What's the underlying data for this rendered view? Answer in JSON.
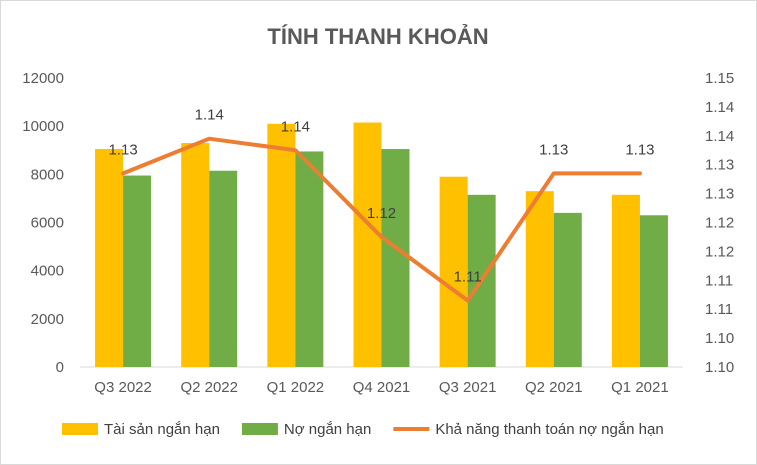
{
  "chart_data": {
    "type": "bar",
    "title": "TÍNH THANH KHOẢN",
    "categories": [
      "Q3 2022",
      "Q2 2022",
      "Q1 2022",
      "Q4 2021",
      "Q3 2021",
      "Q2 2021",
      "Q1 2021"
    ],
    "series": [
      {
        "name": "Tài sản ngắn hạn",
        "type": "bar",
        "axis": "left",
        "color": "#FFC000",
        "values": [
          9050,
          9300,
          10100,
          10150,
          7900,
          7300,
          7150
        ]
      },
      {
        "name": "Nợ ngắn hạn",
        "type": "bar",
        "axis": "left",
        "color": "#70AD47",
        "values": [
          7950,
          8150,
          8950,
          9050,
          7150,
          6400,
          6300
        ]
      },
      {
        "name": "Khả năng thanh toán nợ ngắn hạn",
        "type": "line",
        "axis": "right",
        "color": "#ED7D31",
        "values": [
          1.1335,
          1.1395,
          1.1375,
          1.1225,
          1.1115,
          1.1335,
          1.1335
        ],
        "labels": [
          "1.13",
          "1.14",
          "1.14",
          "1.12",
          "1.11",
          "1.13",
          "1.13"
        ]
      }
    ],
    "y_left": {
      "ylim": [
        0,
        12000
      ],
      "ticks": [
        "0",
        "2000",
        "4000",
        "6000",
        "8000",
        "10000",
        "12000"
      ]
    },
    "y_right": {
      "ylim": [
        1.1,
        1.15
      ],
      "ticks": [
        "1.10",
        "1.10",
        "1.11",
        "1.11",
        "1.12",
        "1.12",
        "1.13",
        "1.13",
        "1.14",
        "1.14",
        "1.15"
      ]
    },
    "grid": false,
    "legend_position": "bottom"
  }
}
